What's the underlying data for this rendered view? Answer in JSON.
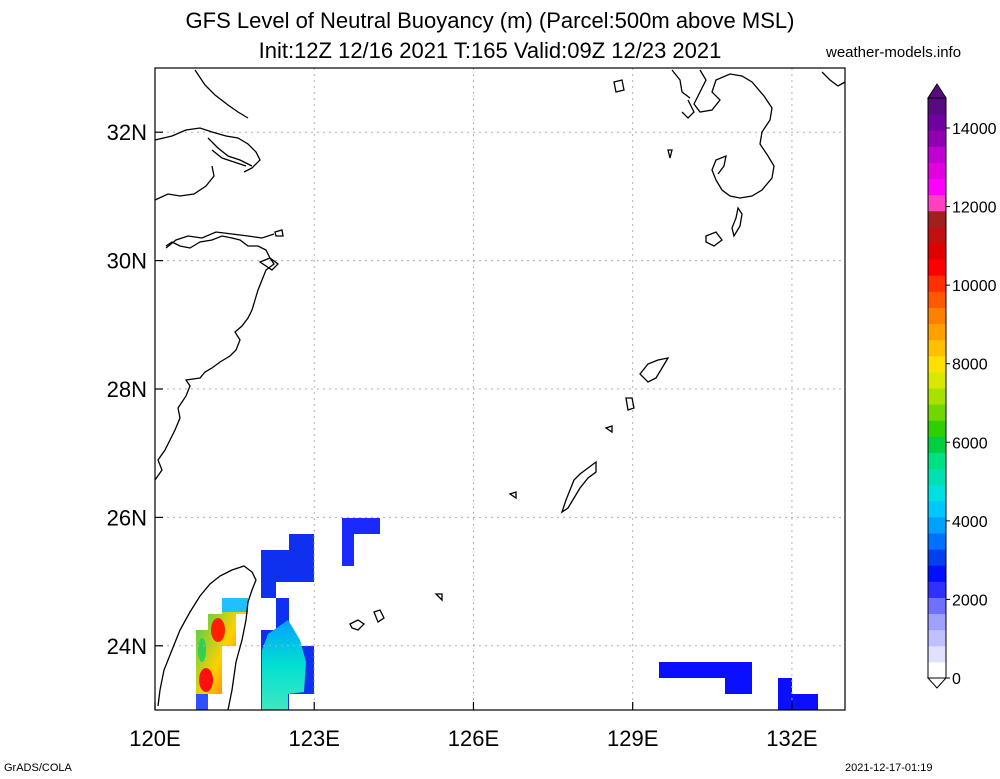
{
  "header": {
    "title_line1": "GFS Level of Neutral Buoyancy (m) (Parcel:500m above MSL)",
    "title_line2": "Init:12Z 12/16 2021 T:165 Valid:09Z 12/23 2021",
    "site": "weather-models.info"
  },
  "map": {
    "lon_range": [
      120,
      133
    ],
    "lat_range": [
      23,
      33
    ],
    "lon_ticks": [
      {
        "value": 120,
        "label": "120E"
      },
      {
        "value": 123,
        "label": "123E"
      },
      {
        "value": 126,
        "label": "126E"
      },
      {
        "value": 129,
        "label": "129E"
      },
      {
        "value": 132,
        "label": "132E"
      }
    ],
    "lat_ticks": [
      {
        "value": 24,
        "label": "24N"
      },
      {
        "value": 26,
        "label": "26N"
      },
      {
        "value": 28,
        "label": "28N"
      },
      {
        "value": 30,
        "label": "30N"
      },
      {
        "value": 32,
        "label": "32N"
      }
    ],
    "grid": true
  },
  "colorbar": {
    "labels": [
      "0",
      "2000",
      "4000",
      "6000",
      "8000",
      "10000",
      "12000",
      "14000"
    ],
    "colors": [
      "#ffffff",
      "#e0e0ff",
      "#c0c0ff",
      "#a0a0ff",
      "#7070ff",
      "#3030ff",
      "#0010ff",
      "#0040f0",
      "#0070ff",
      "#00a0ff",
      "#00c8ff",
      "#00e0e0",
      "#00e0b0",
      "#00e080",
      "#00d040",
      "#30d000",
      "#70d800",
      "#a8e000",
      "#d8e800",
      "#ffe000",
      "#ffc000",
      "#ffa000",
      "#ff8000",
      "#ff5800",
      "#ff3000",
      "#ff0000",
      "#e00000",
      "#c01010",
      "#a02020",
      "#ff40c0",
      "#ff00ff",
      "#e000e0",
      "#c000d0",
      "#9000b0",
      "#7000a0",
      "#5a0a80"
    ]
  },
  "chart_data": {
    "type": "heatmap",
    "variable": "Level of Neutral Buoyancy (m)",
    "units": "m",
    "cells": [
      {
        "lon": 122.0,
        "lat": 25.5,
        "value": 1500
      },
      {
        "lon": 122.5,
        "lat": 25.5,
        "value": 1500
      },
      {
        "lon": 122.5,
        "lat": 25.0,
        "value": 1700
      },
      {
        "lon": 123.5,
        "lat": 25.75,
        "value": 1500
      },
      {
        "lon": 124.0,
        "lat": 25.75,
        "value": 1500
      },
      {
        "lon": 122.0,
        "lat": 24.0,
        "value": 2500
      },
      {
        "lon": 122.5,
        "lat": 23.75,
        "value": 3200
      },
      {
        "lon": 122.5,
        "lat": 23.25,
        "value": 3000
      },
      {
        "lon": 121.0,
        "lat": 24.25,
        "value": 8000
      },
      {
        "lon": 120.75,
        "lat": 23.5,
        "value": 10000
      },
      {
        "lon": 121.25,
        "lat": 24.5,
        "value": 3000
      },
      {
        "lon": 130.0,
        "lat": 23.5,
        "value": 1500
      },
      {
        "lon": 131.0,
        "lat": 23.25,
        "value": 1500
      },
      {
        "lon": 132.25,
        "lat": 23.0,
        "value": 1500
      }
    ]
  },
  "footer": {
    "left": "GrADS/COLA",
    "right": "2021-12-17-01:19"
  }
}
